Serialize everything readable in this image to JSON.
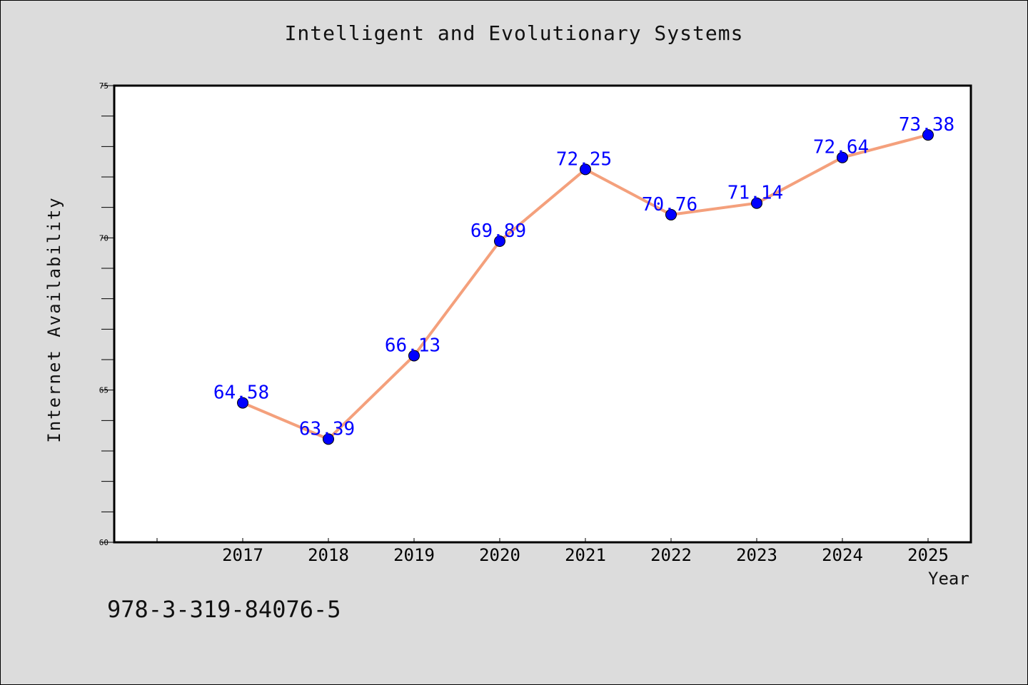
{
  "chart_data": {
    "type": "line",
    "title": "Intelligent and Evolutionary Systems",
    "xlabel": "Year",
    "ylabel": "Internet Availability",
    "ylim": [
      60,
      75
    ],
    "y_ticks": [
      "60",
      "65",
      "70",
      "75"
    ],
    "categories": [
      "2017",
      "2018",
      "2019",
      "2020",
      "2021",
      "2022",
      "2023",
      "2024",
      "2025"
    ],
    "series": [
      {
        "values": [
          64.58,
          63.39,
          66.13,
          69.89,
          72.25,
          70.76,
          71.14,
          72.64,
          73.38
        ],
        "labels": [
          "64.58",
          "63.39",
          "66.13",
          "69.89",
          "72.25",
          "70.76",
          "71.14",
          "72.64",
          "73.38"
        ]
      }
    ],
    "grid": false,
    "line_color": "#f4a07c",
    "marker_color": "#0000ff",
    "label_color": "#0000ff"
  },
  "footer": {
    "isbn": "978-3-319-84076-5"
  }
}
